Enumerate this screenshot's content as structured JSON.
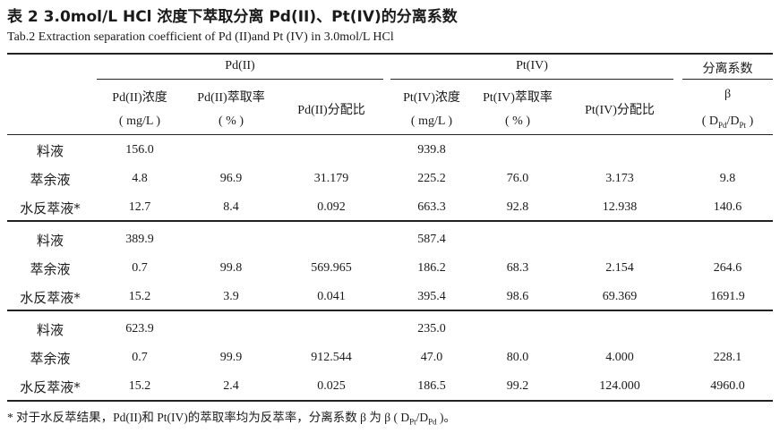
{
  "caption_cn": "表 2   3.0mol/L HCl 浓度下萃取分离 Pd(II)、Pt(IV)的分离系数",
  "caption_en": "Tab.2   Extraction separation coefficient of Pd (II)and Pt (IV) in 3.0mol/L HCl",
  "group_headers": {
    "pd": "Pd(II)",
    "pt": "Pt(IV)",
    "sep": "分离系数"
  },
  "sub_headers": {
    "pd_conc": "Pd(II)浓度",
    "pd_conc_unit": "( mg/L )",
    "pd_ext": "Pd(II)萃取率",
    "pd_ext_unit": "( % )",
    "pd_ratio": "Pd(II)分配比",
    "pt_conc": "Pt(IV)浓度",
    "pt_conc_unit": "( mg/L )",
    "pt_ext": "Pt(IV)萃取率",
    "pt_ext_unit": "( % )",
    "pt_ratio": "Pt(IV)分配比",
    "beta": "β",
    "beta_unit_open": "( D",
    "beta_unit_sub1": "Pd",
    "beta_unit_mid": "/D",
    "beta_unit_sub2": "Pt",
    "beta_unit_close": " )"
  },
  "groups": [
    {
      "rows": [
        {
          "label": "料液",
          "pd_conc": "156.0",
          "pd_ext": "",
          "pd_ratio": "",
          "pt_conc": "939.8",
          "pt_ext": "",
          "pt_ratio": "",
          "beta": ""
        },
        {
          "label": "萃余液",
          "pd_conc": "4.8",
          "pd_ext": "96.9",
          "pd_ratio": "31.179",
          "pt_conc": "225.2",
          "pt_ext": "76.0",
          "pt_ratio": "3.173",
          "beta": "9.8"
        },
        {
          "label": "水反萃液*",
          "pd_conc": "12.7",
          "pd_ext": "8.4",
          "pd_ratio": "0.092",
          "pt_conc": "663.3",
          "pt_ext": "92.8",
          "pt_ratio": "12.938",
          "beta": "140.6"
        }
      ]
    },
    {
      "rows": [
        {
          "label": "料液",
          "pd_conc": "389.9",
          "pd_ext": "",
          "pd_ratio": "",
          "pt_conc": "587.4",
          "pt_ext": "",
          "pt_ratio": "",
          "beta": ""
        },
        {
          "label": "萃余液",
          "pd_conc": "0.7",
          "pd_ext": "99.8",
          "pd_ratio": "569.965",
          "pt_conc": "186.2",
          "pt_ext": "68.3",
          "pt_ratio": "2.154",
          "beta": "264.6"
        },
        {
          "label": "水反萃液*",
          "pd_conc": "15.2",
          "pd_ext": "3.9",
          "pd_ratio": "0.041",
          "pt_conc": "395.4",
          "pt_ext": "98.6",
          "pt_ratio": "69.369",
          "beta": "1691.9"
        }
      ]
    },
    {
      "rows": [
        {
          "label": "料液",
          "pd_conc": "623.9",
          "pd_ext": "",
          "pd_ratio": "",
          "pt_conc": "235.0",
          "pt_ext": "",
          "pt_ratio": "",
          "beta": ""
        },
        {
          "label": "萃余液",
          "pd_conc": "0.7",
          "pd_ext": "99.9",
          "pd_ratio": "912.544",
          "pt_conc": "47.0",
          "pt_ext": "80.0",
          "pt_ratio": "4.000",
          "beta": "228.1"
        },
        {
          "label": "水反萃液*",
          "pd_conc": "15.2",
          "pd_ext": "2.4",
          "pd_ratio": "0.025",
          "pt_conc": "186.5",
          "pt_ext": "99.2",
          "pt_ratio": "124.000",
          "beta": "4960.0"
        }
      ]
    }
  ],
  "footnote": {
    "text": "*  对于水反萃结果，Pd(II)和 Pt(IV)的萃取率均为反萃率，分离系数 β 为 β ( D",
    "sub1": "Pt",
    "mid": "/D",
    "sub2": "Pd",
    "close": " )。"
  }
}
